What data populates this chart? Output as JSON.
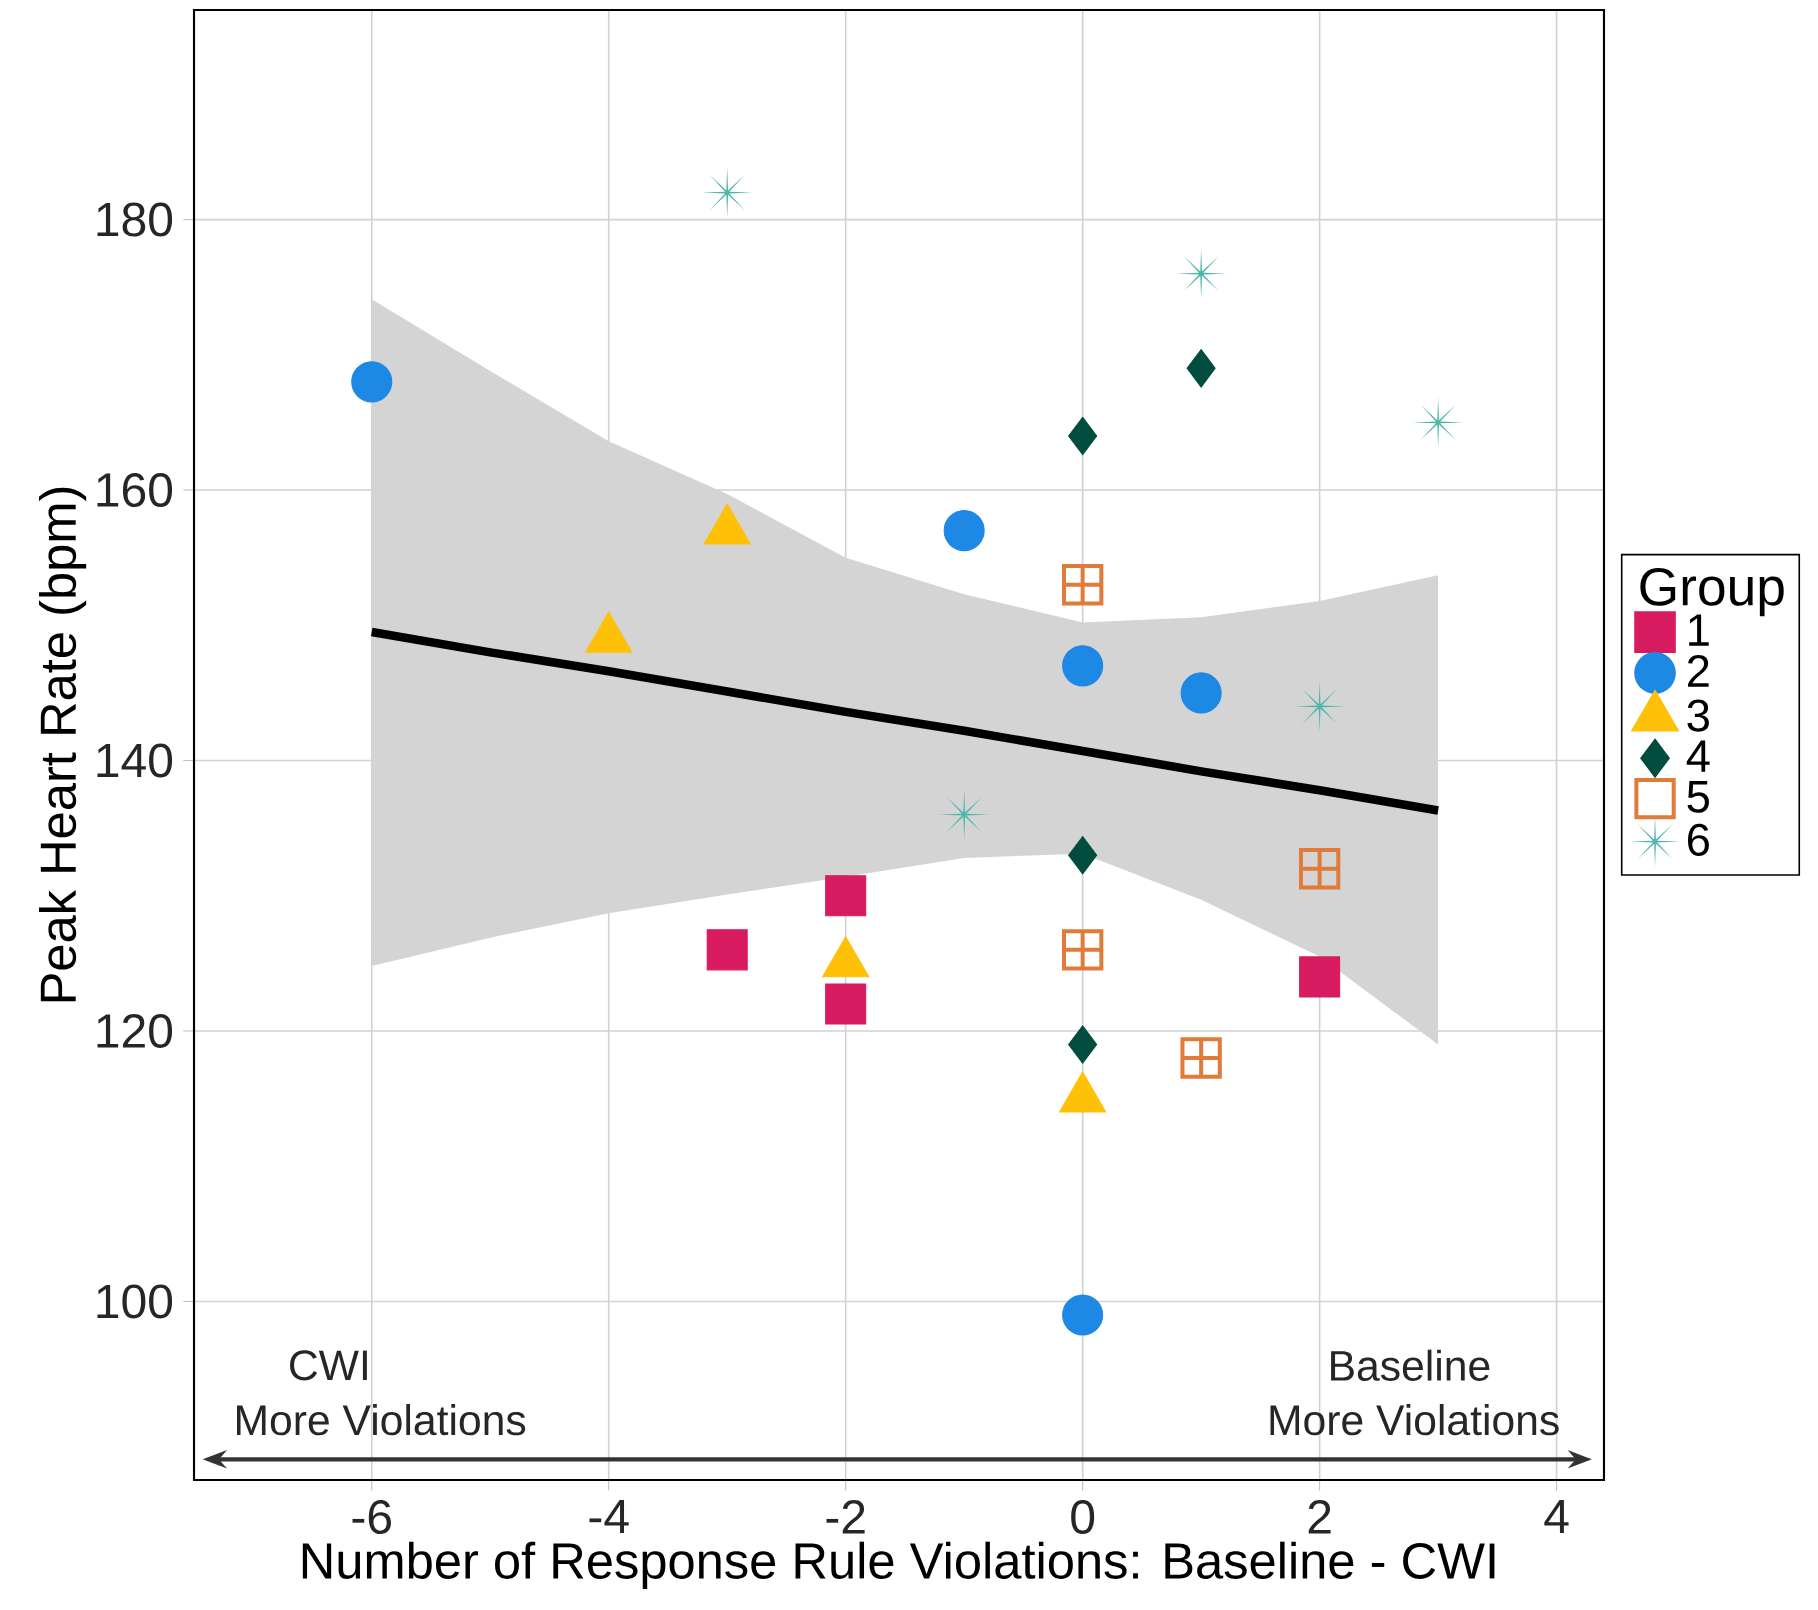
{
  "chart_data": {
    "type": "scatter",
    "xlabel": "Number of Response Rule Violations: Baseline - CWI",
    "ylabel": "Peak Heart Rate (bpm)",
    "legend_title": "Group",
    "xlim": [
      -7.5,
      4.4
    ],
    "ylim": [
      86.8,
      195.5
    ],
    "xticks": [
      -6,
      -4,
      -2,
      0,
      2,
      4
    ],
    "yticks": [
      100,
      120,
      140,
      160,
      180
    ],
    "grid": true,
    "legend": "right",
    "annotations": [
      "CWI",
      "More Violations",
      "Baseline",
      "More Violations"
    ],
    "series": [
      {
        "name": "1",
        "color": "#d81b60",
        "marker": "square",
        "x": [
          -3,
          -2,
          -2,
          2
        ],
        "values": [
          126,
          130,
          122,
          124
        ]
      },
      {
        "name": "2",
        "color": "#1e88e5",
        "marker": "circle",
        "x": [
          -6,
          -1,
          0,
          1,
          0
        ],
        "values": [
          168,
          157,
          147,
          145,
          99
        ]
      },
      {
        "name": "3",
        "color": "#ffc107",
        "marker": "triangle",
        "x": [
          -4,
          -3,
          -2,
          0
        ],
        "values": [
          149,
          157,
          125,
          115
        ]
      },
      {
        "name": "4",
        "color": "#004d40",
        "marker": "diamond",
        "x": [
          0,
          1,
          0,
          0
        ],
        "values": [
          164,
          169,
          133,
          119
        ]
      },
      {
        "name": "5",
        "color": "#e07b39",
        "marker": "square",
        "x": [
          0,
          0,
          2,
          1
        ],
        "values": [
          153,
          126,
          132,
          118
        ]
      },
      {
        "name": "6",
        "color": "#4db6ac",
        "marker": "star",
        "x": [
          -3,
          1,
          3,
          2,
          -1
        ],
        "values": [
          182,
          176,
          165,
          144,
          136
        ]
      },
      {
        "type": "line",
        "color": "#000000",
        "marker": "none",
        "line_style": "solid",
        "x": [
          -6,
          -5,
          -4,
          -3,
          -2,
          -1,
          0,
          1,
          2,
          3
        ],
        "values": [
          149.5,
          148.0,
          146.6,
          145.1,
          143.6,
          142.2,
          140.7,
          139.2,
          137.8,
          136.3
        ],
        "lower": [
          124.8,
          126.9,
          128.7,
          130.1,
          131.4,
          132.8,
          133.1,
          129.7,
          125.5,
          119.0
        ],
        "upper": [
          174.1,
          168.8,
          163.6,
          159.7,
          155.0,
          152.3,
          150.2,
          150.6,
          151.8,
          153.7
        ]
      }
    ]
  }
}
